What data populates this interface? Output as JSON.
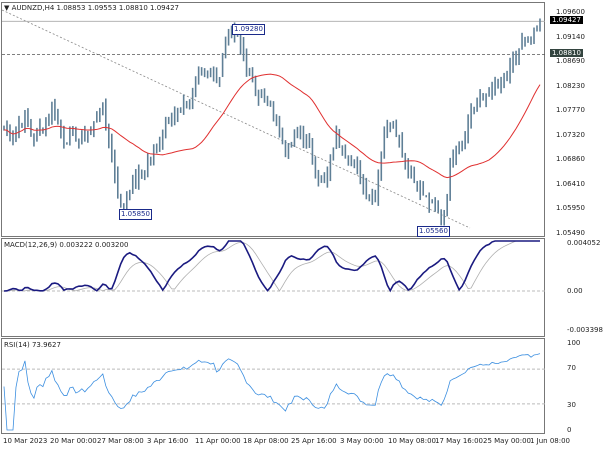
{
  "header": {
    "symbol": "AUDNZD,H4",
    "ohlc": "1.08853 1.09553 1.08810 1.09427"
  },
  "price_axis": [
    "1.09600",
    "1.09140",
    "1.08690",
    "1.08230",
    "1.07770",
    "1.07320",
    "1.06860",
    "1.06410",
    "1.05950",
    "1.05490"
  ],
  "price_tags": {
    "current": "1.09427",
    "bid_line": "1.08810"
  },
  "annotations": {
    "high": "1.09280",
    "low1": "1.05850",
    "low2": "1.05560"
  },
  "macd": {
    "label": "MACD(12,26,9) 0.003222 0.003200",
    "axis": [
      "0.004052",
      "0.00",
      "-0.003398"
    ]
  },
  "rsi": {
    "label": "RSI(14) 73.9627",
    "axis": [
      "100",
      "70",
      "30",
      "0"
    ]
  },
  "time_axis": [
    "10 Mar 2023",
    "20 Mar 00:00",
    "27 Mar 08:00",
    "3 Apr 16:00",
    "11 Apr 00:00",
    "18 Apr 08:00",
    "25 Apr 16:00",
    "3 May 00:00",
    "10 May 08:00",
    "17 May 16:00",
    "25 May 00:00",
    "1 Jun 08:00"
  ],
  "colors": {
    "bars": "#5f7f96",
    "ma": "#e03030",
    "macd": "#1a1a80",
    "signal": "#b0b0b0",
    "rsi": "#3c8fe0"
  },
  "chart_data": {
    "type": "ohlc",
    "symbol": "AUDNZD",
    "timeframe": "H4",
    "closes": [
      1.0741,
      1.0731,
      1.0768,
      1.0722,
      1.075,
      1.0787,
      1.0722,
      1.0731,
      1.0722,
      1.0741,
      1.0787,
      1.0703,
      1.0592,
      1.0638,
      1.0657,
      1.0685,
      1.0722,
      1.0778,
      1.0768,
      1.0796,
      1.0843,
      1.0852,
      1.0834,
      1.0917,
      1.0908,
      1.0861,
      1.0806,
      1.0796,
      1.0759,
      1.0694,
      1.0741,
      1.0722,
      1.0666,
      1.0638,
      1.0731,
      1.0703,
      1.0675,
      1.0629,
      1.061,
      1.0741,
      1.0759,
      1.0694,
      1.0648,
      1.062,
      1.0601,
      1.0573,
      1.0694,
      1.0722,
      1.0778,
      1.0796,
      1.0815,
      1.0824,
      1.0852,
      1.0899,
      1.0899,
      1.0943
    ],
    "ylim": [
      1.0549,
      1.096
    ]
  }
}
